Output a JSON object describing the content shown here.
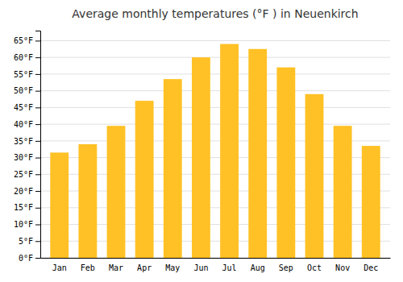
{
  "chart_data": {
    "type": "bar",
    "title": "Average monthly temperatures (°F ) in Neuenkirch",
    "categories": [
      "Jan",
      "Feb",
      "Mar",
      "Apr",
      "May",
      "Jun",
      "Jul",
      "Aug",
      "Sep",
      "Oct",
      "Nov",
      "Dec"
    ],
    "values": [
      31.5,
      34.0,
      39.5,
      47.0,
      53.5,
      60.0,
      64.0,
      62.5,
      57.0,
      49.0,
      39.5,
      33.5
    ],
    "color": "#FFC125",
    "ylim": [
      0,
      68
    ],
    "yticks": [
      {
        "value": 0,
        "label": "0°F"
      },
      {
        "value": 5,
        "label": "5°F"
      },
      {
        "value": 10,
        "label": "10°F"
      },
      {
        "value": 15,
        "label": "15°F"
      },
      {
        "value": 20,
        "label": "20°F"
      },
      {
        "value": 25,
        "label": "25°F"
      },
      {
        "value": 30,
        "label": "30°F"
      },
      {
        "value": 35,
        "label": "35°F"
      },
      {
        "value": 40,
        "label": "40°F"
      },
      {
        "value": 45,
        "label": "45°F"
      },
      {
        "value": 50,
        "label": "50°F"
      },
      {
        "value": 55,
        "label": "55°F"
      },
      {
        "value": 60,
        "label": "60°F"
      },
      {
        "value": 65,
        "label": "65°F"
      }
    ],
    "grid": true
  }
}
